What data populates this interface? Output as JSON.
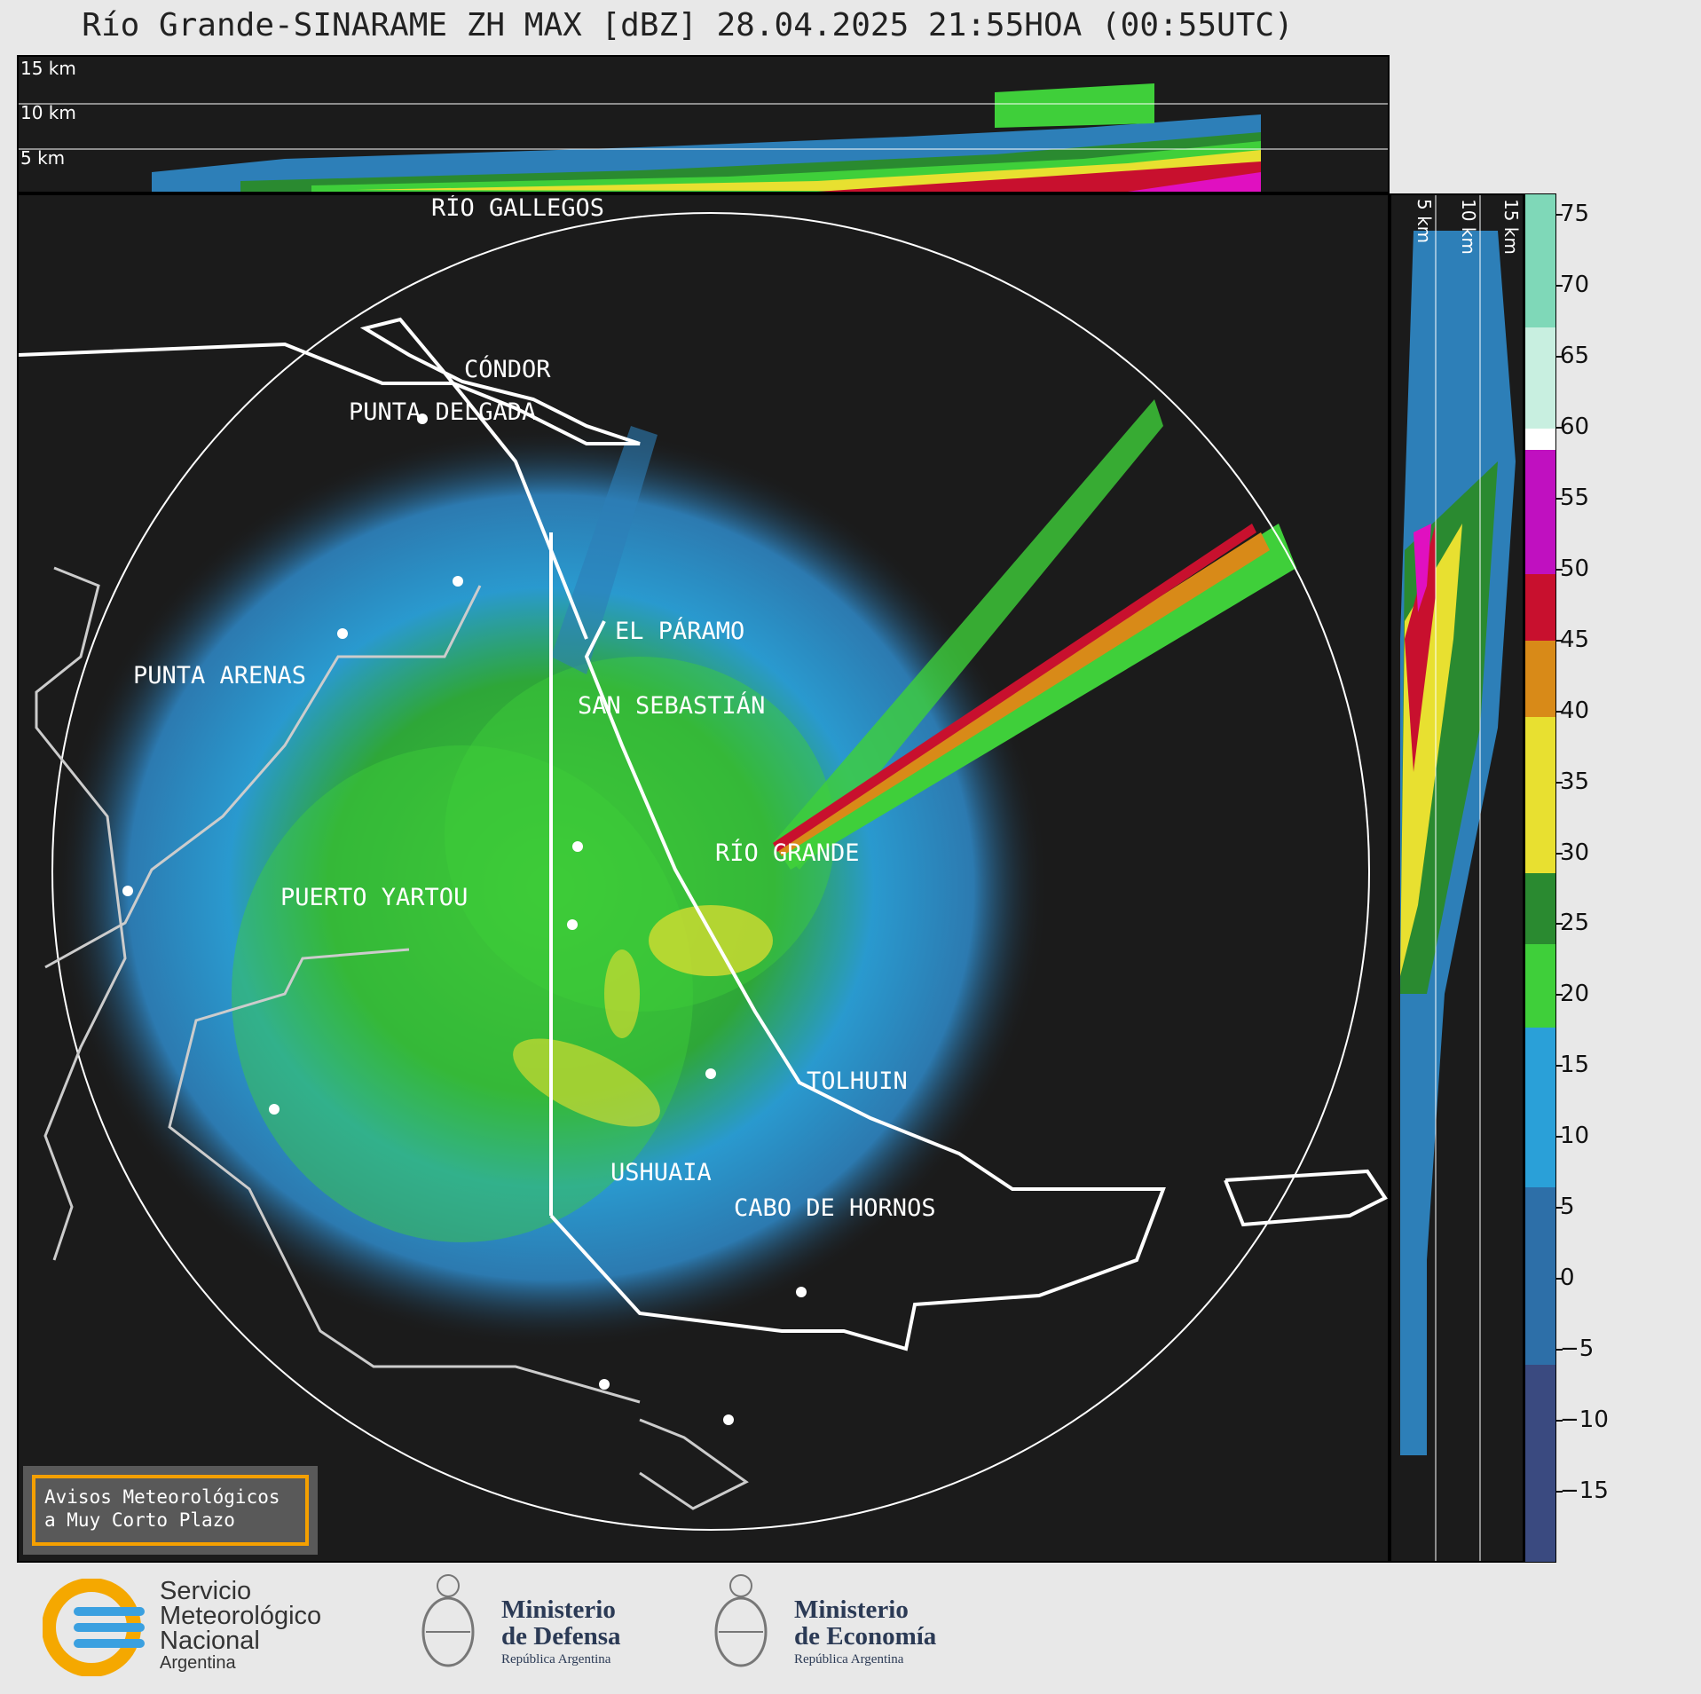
{
  "title": "Río Grande-SINARAME ZH MAX [dBZ] 28.04.2025 21:55HOA (00:55UTC)",
  "height_labels": {
    "h15": "15 km",
    "h10": "10 km",
    "h5": "5 km"
  },
  "places": [
    {
      "name": "RÍO GALLEGOS"
    },
    {
      "name": "CÓNDOR"
    },
    {
      "name": "PUNTA DELGADA"
    },
    {
      "name": "PUNTA ARENAS"
    },
    {
      "name": "EL PÁRAMO"
    },
    {
      "name": "SAN SEBASTIÁN"
    },
    {
      "name": "RÍO GRANDE"
    },
    {
      "name": "PUERTO YARTOU"
    },
    {
      "name": "TOLHUIN"
    },
    {
      "name": "USHUAIA"
    },
    {
      "name": "CABO DE HORNOS"
    }
  ],
  "colorbar": {
    "unit": "dBZ",
    "ticks": [
      "75",
      "70",
      "65",
      "60",
      "55",
      "50",
      "45",
      "40",
      "35",
      "30",
      "25",
      "20",
      "15",
      "10",
      "5",
      "0",
      "−5",
      "−10",
      "−15"
    ],
    "tick_values": [
      75,
      70,
      65,
      60,
      55,
      50,
      45,
      40,
      35,
      30,
      25,
      20,
      15,
      10,
      5,
      0,
      -5,
      -10,
      -15
    ],
    "min": -20,
    "max": 76.5
  },
  "colors": {
    "background": "#1b1b1b",
    "light_blue": "#2aa0d8",
    "mid_blue": "#2d7fb8",
    "green": "#3fcf3a",
    "dark_green": "#2a8a30",
    "yellow": "#e8e030",
    "orange": "#d88a18",
    "red": "#c8102e",
    "magenta": "#e010c0",
    "warning_border": "#f5a000"
  },
  "warning": {
    "line1": "Avisos Meteorológicos",
    "line2": "a Muy Corto Plazo"
  },
  "footer": {
    "smn_line1": "Servicio",
    "smn_line2": "Meteorológico",
    "smn_line3": "Nacional",
    "smn_line4": "Argentina",
    "def_line1": "Ministerio",
    "def_line2": "de Defensa",
    "def_line3": "República Argentina",
    "eco_line1": "Ministerio",
    "eco_line2": "de Economía",
    "eco_line3": "República Argentina"
  }
}
